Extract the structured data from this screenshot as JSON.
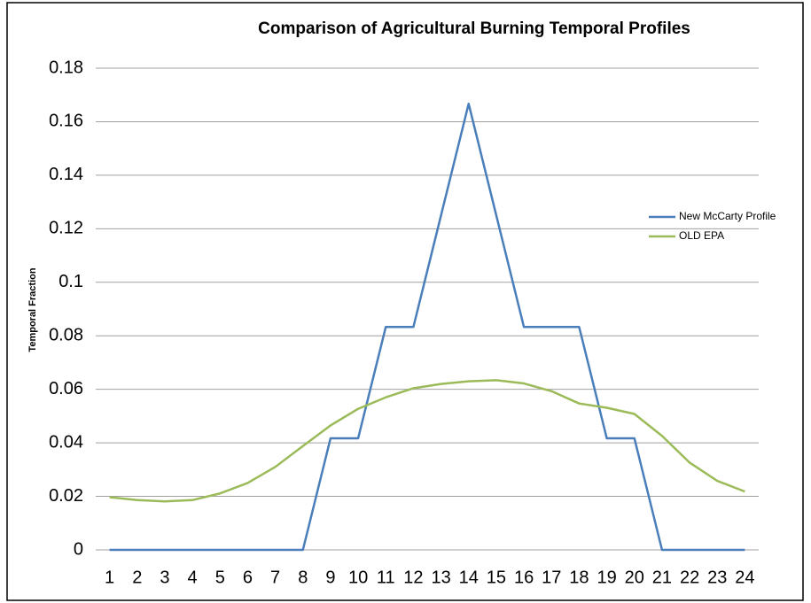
{
  "chart_data": {
    "type": "line",
    "title": "Comparison of Agricultural Burning Temporal Profiles",
    "y_label": "Temporal Fraction",
    "categories": [
      1,
      2,
      3,
      4,
      5,
      6,
      7,
      8,
      9,
      10,
      11,
      12,
      13,
      14,
      15,
      16,
      17,
      18,
      19,
      20,
      21,
      22,
      23,
      24
    ],
    "series": [
      {
        "name": "New McCarty Profile",
        "color": "#4a7ebb",
        "values": [
          0,
          0,
          0,
          0,
          0,
          0,
          0,
          0,
          0.0417,
          0.0417,
          0.0833,
          0.0833,
          0.125,
          0.1667,
          0.125,
          0.0833,
          0.0833,
          0.0833,
          0.0417,
          0.0417,
          0,
          0,
          0,
          0
        ]
      },
      {
        "name": "OLD EPA",
        "color": "#9bbb59",
        "values": [
          0.0197,
          0.0186,
          0.0181,
          0.0186,
          0.0211,
          0.025,
          0.031,
          0.0388,
          0.0465,
          0.0527,
          0.057,
          0.0604,
          0.062,
          0.063,
          0.0634,
          0.0622,
          0.0593,
          0.0547,
          0.0531,
          0.0508,
          0.0426,
          0.0326,
          0.0258,
          0.0218
        ]
      }
    ],
    "ylim": [
      0,
      0.18
    ],
    "yticks": [
      0,
      0.02,
      0.04,
      0.06,
      0.08,
      0.1,
      0.12,
      0.14,
      0.16,
      0.18
    ],
    "grid": true,
    "legend": "right"
  }
}
